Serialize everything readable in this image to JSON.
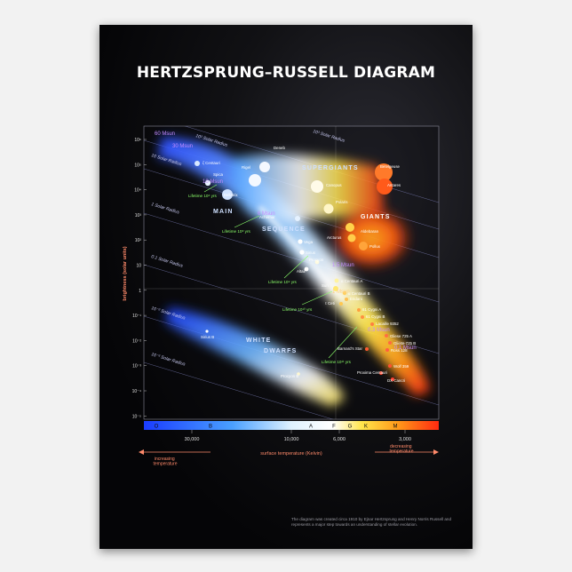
{
  "poster": {
    "title": "HERTZSPRUNG–RUSSELL DIAGRAM",
    "caption": "The diagram was created circa 1910 by Ejnar Hertzsprung and Henry Norris Russell and represents a major step towards an understanding of stellar evolution."
  },
  "axes": {
    "y_label": "brightness (solar units)",
    "y_ticks": [
      "10⁶",
      "10⁵",
      "10⁴",
      "10³",
      "10²",
      "10",
      "1",
      "10⁻¹",
      "10⁻²",
      "10⁻³",
      "10⁻⁴",
      "10⁻⁵"
    ],
    "x_label": "surface temperature (Kelvin)",
    "x_ticks": [
      "30,000",
      "10,000",
      "6,000",
      "3,000"
    ],
    "spectral_classes": [
      "O",
      "B",
      "A",
      "F",
      "G",
      "K",
      "M"
    ],
    "increasing_label": "increasing temperature",
    "decreasing_label": "decreasing temperature"
  },
  "radius_lines": [
    "10³ Solar Radius",
    "10² Solar Radius",
    "10 Solar Radius",
    "1 Solar Radius",
    "0.1 Solar Radius",
    "10⁻² Solar Radius",
    "10⁻³ Solar Radius"
  ],
  "regions": {
    "supergiants": "SUPERGIANTS",
    "giants": "GIANTS",
    "main": "MAIN",
    "sequence": "SEQUENCE",
    "white": "WHITE",
    "dwarfs": "DWARFS"
  },
  "masses": [
    "60 Msun",
    "30 Msun",
    "10 Msun",
    "6 Msun",
    "1.5 Msun",
    "1 Msun",
    "0.3 Msun",
    "0.1 Msun"
  ],
  "lifetimes": [
    "Lifetime 10⁶ yrs",
    "Lifetime 10⁸ yrs",
    "Lifetime 10⁹ yrs",
    "Lifetime 10¹⁰ yrs",
    "Lifetime 10¹¹ yrs"
  ],
  "stars": [
    "Deneb",
    "Rigel",
    "Betelgeuse",
    "Antares",
    "Canopus",
    "Polaris",
    "ζ Centauri",
    "Spica",
    "Bellatrix",
    "Achernar",
    "Aldebaran",
    "Arcturus",
    "Pollux",
    "Vega",
    "Sirius",
    "Procyon",
    "Altair",
    "α Centauri A",
    "α Centauri B",
    "Sun",
    "Eridani",
    "τ Ceti",
    "61 Cygni A",
    "61 Cygni B",
    "Lacaille 9352",
    "Gliese 725 A",
    "Gliese 725 B",
    "Ross 128",
    "Barnard's Star",
    "Wolf 359",
    "Proxima Centauri",
    "DX Cancri",
    "Sirius B",
    "Procyon B"
  ],
  "colors": {
    "o_class": "#1a3cff",
    "b_class": "#4aa0ff",
    "a_class": "#dff2ff",
    "g_class": "#ffe54a",
    "k_class": "#ff9a1a",
    "m_class": "#ff2a10",
    "mass_label": "#c48cff",
    "lifetime_label": "#8cff6a",
    "temp_arrow": "#ff8a6a"
  }
}
